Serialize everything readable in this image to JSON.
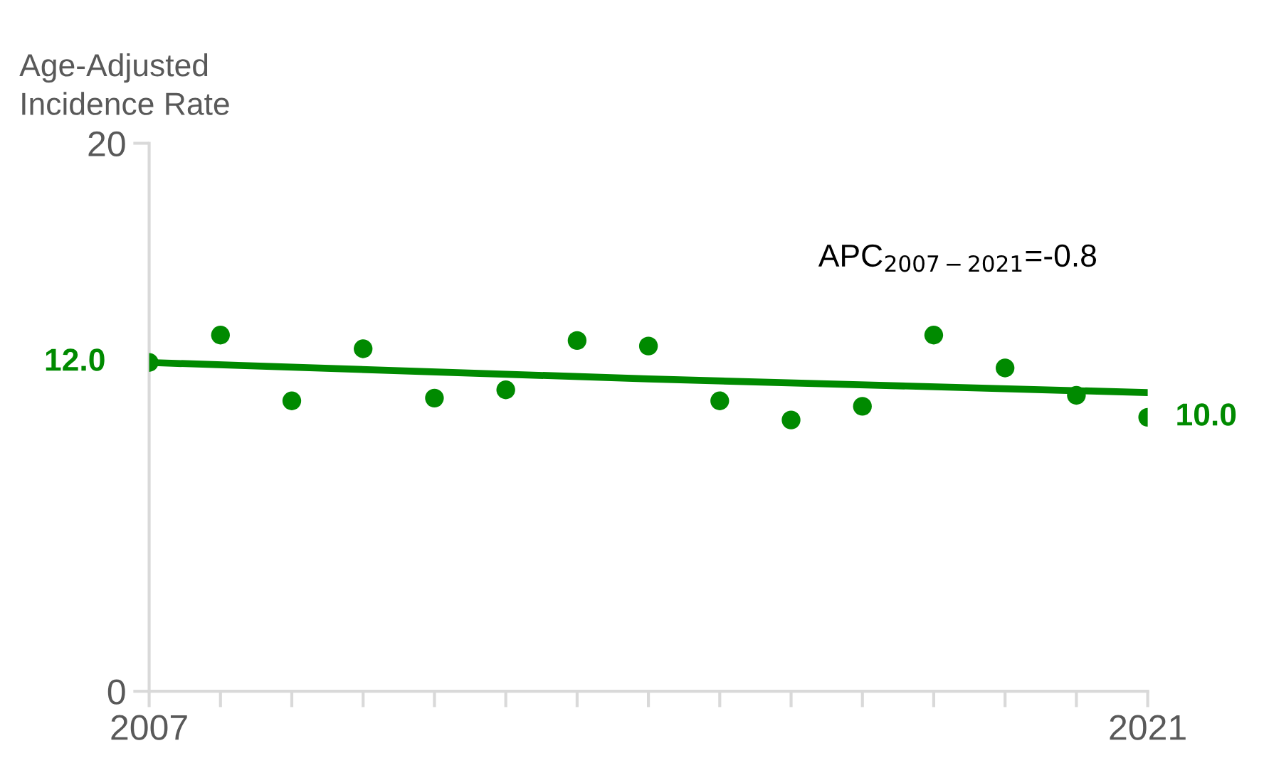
{
  "chart_data": {
    "type": "scatter",
    "ylabel": "Age-Adjusted\nIncidence Rate",
    "x": [
      2007,
      2008,
      2009,
      2010,
      2011,
      2012,
      2013,
      2014,
      2015,
      2016,
      2017,
      2018,
      2019,
      2020,
      2021
    ],
    "series": [
      {
        "color": "#008a00",
        "marker": "circle",
        "values": [
          12.0,
          13.0,
          10.6,
          12.5,
          10.7,
          11.0,
          12.8,
          12.6,
          10.6,
          9.9,
          10.4,
          13.0,
          11.8,
          10.8,
          10.0
        ],
        "value_labels": [
          "12.0",
          null,
          null,
          null,
          null,
          null,
          null,
          null,
          null,
          null,
          null,
          null,
          null,
          null,
          "10.0"
        ]
      },
      {
        "type": "line",
        "color": "#008a00",
        "x": [
          2007,
          2014,
          2021
        ],
        "values": [
          12.0,
          11.4,
          10.9
        ]
      }
    ],
    "annotations": [
      "APC$_{2007−2021}$=-0.8"
    ],
    "xlim": [
      2007,
      2021
    ],
    "ylim": [
      0,
      20
    ],
    "xticks": [
      2007,
      {
        "value": 2008,
        "label": null
      },
      {
        "value": 2009,
        "label": null
      },
      {
        "value": 2010,
        "label": null
      },
      {
        "value": 2011,
        "label": null
      },
      {
        "value": 2012,
        "label": null
      },
      {
        "value": 2013,
        "label": null
      },
      {
        "value": 2014,
        "label": null
      },
      {
        "value": 2015,
        "label": null
      },
      {
        "value": 2016,
        "label": null
      },
      {
        "value": 2017,
        "label": null
      },
      {
        "value": 2018,
        "label": null
      },
      {
        "value": 2019,
        "label": null
      },
      {
        "value": 2020,
        "label": null
      },
      2021
    ],
    "yticks": [
      0,
      20
    ],
    "grid": false,
    "legend": false
  }
}
